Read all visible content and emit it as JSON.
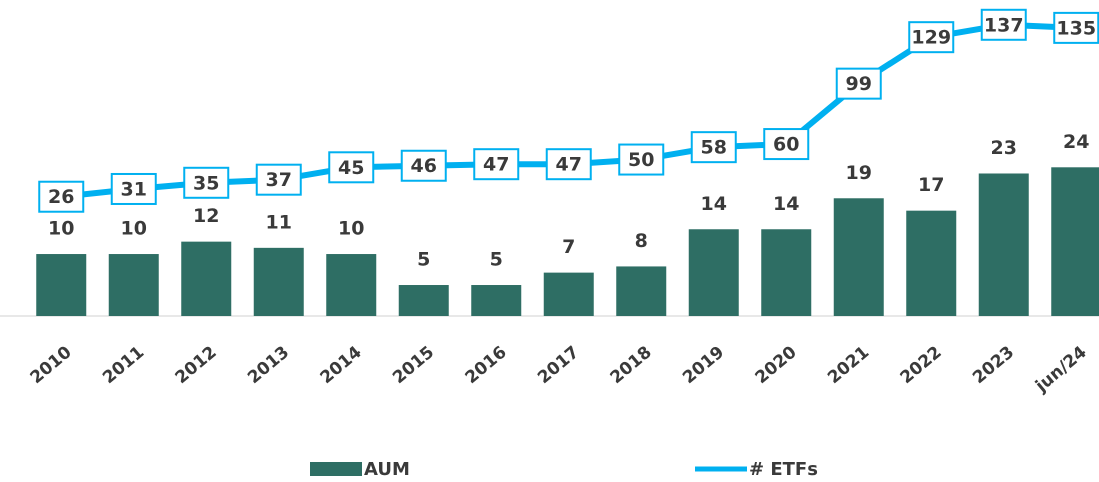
{
  "chart_data": {
    "type": "bar_line",
    "categories": [
      "2010",
      "2011",
      "2012",
      "2013",
      "2014",
      "2015",
      "2016",
      "2017",
      "2018",
      "2019",
      "2020",
      "2021",
      "2022",
      "2023",
      "jun/24"
    ],
    "series": [
      {
        "name": "AUM",
        "type": "bar",
        "color": "#2e6e64",
        "values": [
          10,
          10,
          12,
          11,
          10,
          5,
          5,
          7,
          8,
          14,
          14,
          19,
          17,
          23,
          24
        ]
      },
      {
        "name": "# ETFs",
        "type": "line",
        "axis": "y2",
        "color": "#00b0f0",
        "values": [
          26,
          31,
          35,
          37,
          45,
          46,
          47,
          47,
          50,
          58,
          60,
          99,
          129,
          137,
          135
        ]
      }
    ],
    "ylim": [
      0,
      51
    ],
    "y2lim": [
      -51,
      153
    ],
    "legend": "bottom"
  }
}
